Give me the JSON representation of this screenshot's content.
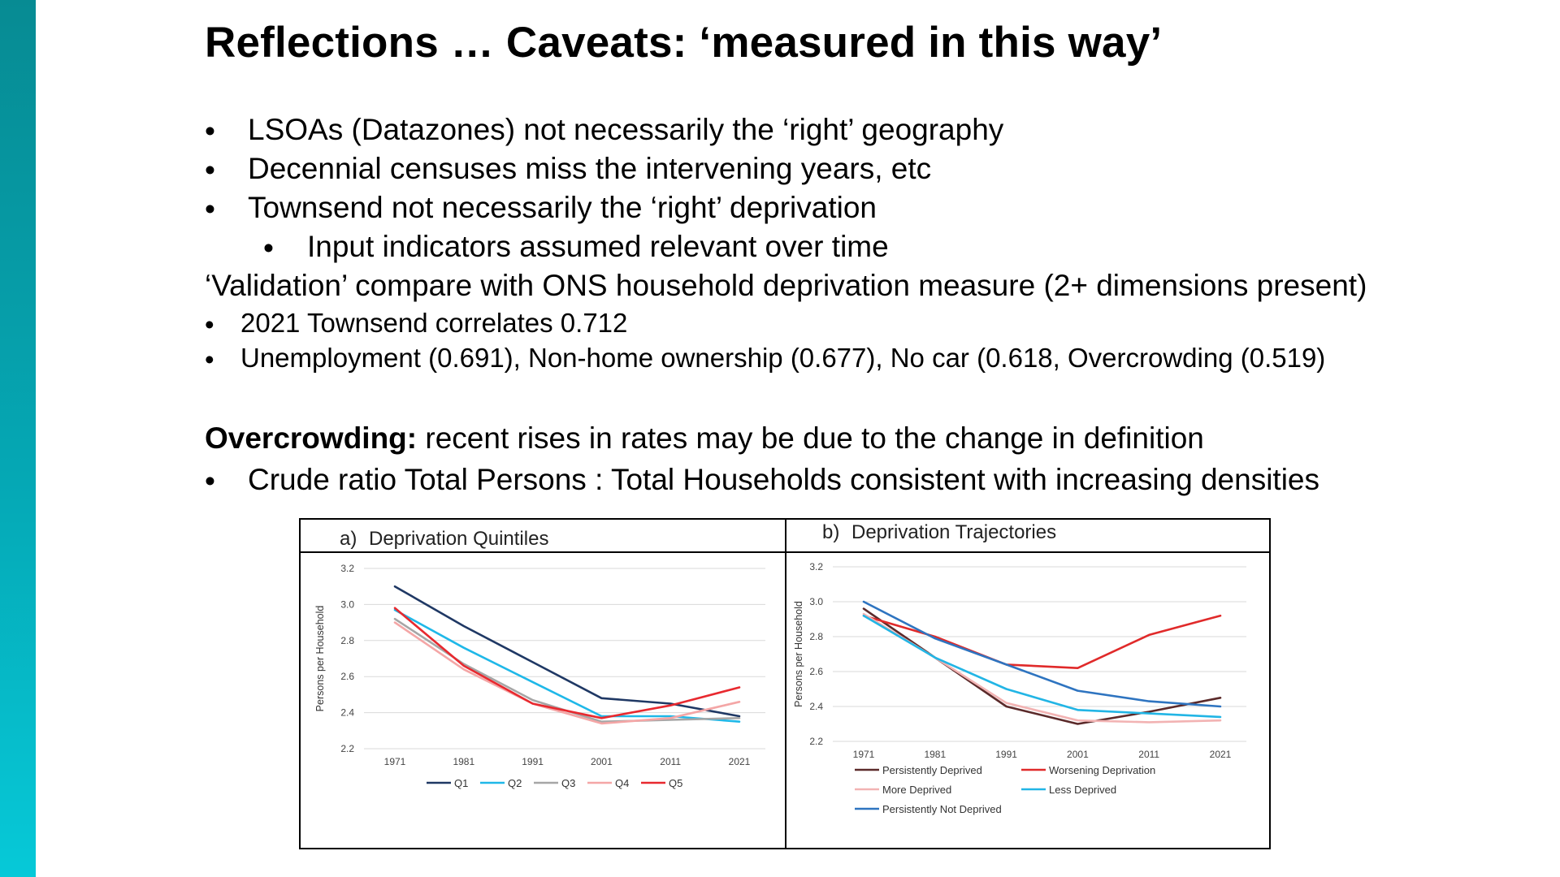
{
  "slide": {
    "title": "Reflections … Caveats: ‘measured in this way’",
    "bullet_glyph": "•",
    "bullets_top": [
      "LSOAs (Datazones) not necessarily the ‘right’ geography",
      "Decennial censuses miss the intervening years, etc",
      "Townsend not necessarily the ‘right’ deprivation"
    ],
    "sub_bullet": "Input indicators assumed relevant over time",
    "validation_line": "‘Validation’ compare with ONS household deprivation measure (2+ dimensions present)",
    "validation_bullets": [
      "2021 Townsend correlates 0.712",
      "Unemployment (0.691), Non-home ownership (0.677), No car (0.618, Overcrowding (0.519)"
    ],
    "overcrowding_label": "Overcrowding:",
    "overcrowding_text": " recent rises in rates may be due to the change in definition",
    "overcrowding_bullet": "Crude ratio Total Persons : Total Households consistent with increasing densities"
  },
  "colors": {
    "side_bar_top": "#078b93",
    "side_bar_bottom": "#06c9d8",
    "Q1": "#1f3864",
    "Q2": "#1fb8e8",
    "Q3": "#a6a6a6",
    "Q4": "#f4a6a6",
    "Q5": "#e8292f",
    "persistently_deprived": "#5b2a2a",
    "worsening_deprivation": "#e02a2a",
    "more_deprived": "#f2b3b3",
    "less_deprived": "#22b5e5",
    "persistently_not_deprived": "#2e74c0"
  },
  "chart_data": [
    {
      "type": "line",
      "panel_label": "a)",
      "title": "Deprivation Quintiles",
      "ylabel": "Persons per Household",
      "xlabel": "",
      "x": [
        "1971",
        "1981",
        "1991",
        "2001",
        "2011",
        "2021"
      ],
      "ylim": [
        2.2,
        3.2
      ],
      "yticks": [
        "2.2",
        "2.4",
        "2.6",
        "2.8",
        "3.0",
        "3.2"
      ],
      "grid": true,
      "legend": "bottom",
      "series": [
        {
          "name": "Q1",
          "color": "#1f3864",
          "values": [
            3.1,
            2.88,
            2.68,
            2.48,
            2.45,
            2.38
          ]
        },
        {
          "name": "Q2",
          "color": "#1fb8e8",
          "values": [
            2.97,
            2.76,
            2.57,
            2.38,
            2.38,
            2.35
          ]
        },
        {
          "name": "Q3",
          "color": "#a6a6a6",
          "values": [
            2.92,
            2.67,
            2.47,
            2.35,
            2.36,
            2.37
          ]
        },
        {
          "name": "Q4",
          "color": "#f4a6a6",
          "values": [
            2.9,
            2.64,
            2.45,
            2.34,
            2.37,
            2.46
          ]
        },
        {
          "name": "Q5",
          "color": "#e8292f",
          "values": [
            2.98,
            2.66,
            2.45,
            2.37,
            2.44,
            2.54
          ]
        }
      ]
    },
    {
      "type": "line",
      "panel_label": "b)",
      "title": "Deprivation Trajectories",
      "ylabel": "Persons per Household",
      "xlabel": "",
      "x": [
        "1971",
        "1981",
        "1991",
        "2001",
        "2011",
        "2021"
      ],
      "ylim": [
        2.2,
        3.2
      ],
      "yticks": [
        "2.2",
        "2.4",
        "2.6",
        "2.8",
        "3.0",
        "3.2"
      ],
      "grid": true,
      "legend": "bottom",
      "series": [
        {
          "name": "Persistently Deprived",
          "color": "#5b2a2a",
          "values": [
            2.96,
            2.68,
            2.4,
            2.3,
            2.37,
            2.45
          ]
        },
        {
          "name": "Worsening Deprivation",
          "color": "#e02a2a",
          "values": [
            2.92,
            2.8,
            2.64,
            2.62,
            2.81,
            2.92
          ]
        },
        {
          "name": "More Deprived",
          "color": "#f2b3b3",
          "values": [
            2.93,
            2.68,
            2.42,
            2.32,
            2.31,
            2.32
          ]
        },
        {
          "name": "Less Deprived",
          "color": "#22b5e5",
          "values": [
            2.92,
            2.68,
            2.5,
            2.38,
            2.36,
            2.34
          ]
        },
        {
          "name": "Persistently Not Deprived",
          "color": "#2e74c0",
          "values": [
            3.0,
            2.79,
            2.64,
            2.49,
            2.43,
            2.4
          ]
        }
      ]
    }
  ]
}
